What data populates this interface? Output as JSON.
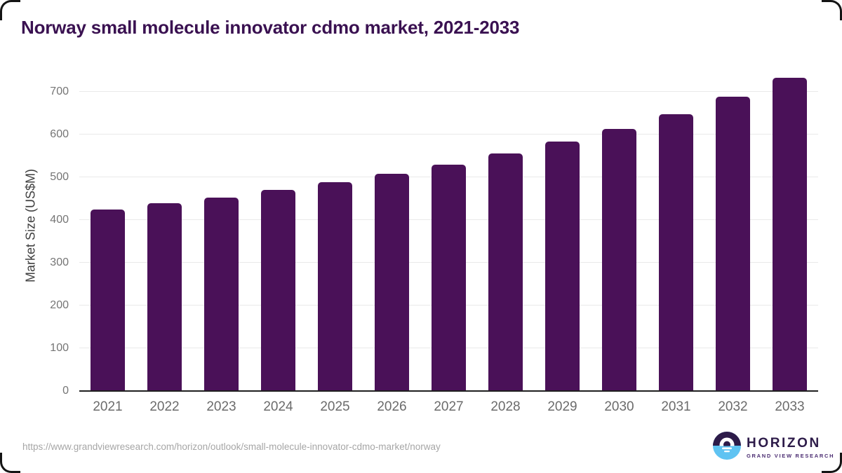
{
  "page": {
    "title": "Norway small molecule innovator cdmo market, 2021-2033"
  },
  "chart_data": {
    "type": "bar",
    "title": "Norway small molecule innovator cdmo market, 2021-2033",
    "categories": [
      "2021",
      "2022",
      "2023",
      "2024",
      "2025",
      "2026",
      "2027",
      "2028",
      "2029",
      "2030",
      "2031",
      "2032",
      "2033"
    ],
    "values": [
      425,
      439,
      453,
      470,
      488,
      508,
      530,
      555,
      583,
      614,
      648,
      688,
      733
    ],
    "xlabel": "",
    "ylabel": "Market Size (US$M)",
    "ylim": [
      0,
      735
    ],
    "yticks": [
      0,
      100,
      200,
      300,
      400,
      500,
      600,
      700
    ],
    "grid": "horizontal-light",
    "legend_position": "none",
    "bar_color": "#4a1158",
    "title_color": "#3a1151"
  },
  "footer": {
    "source_url": "https://www.grandviewresearch.com/horizon/outlook/small-molecule-innovator-cdmo-market/norway",
    "logo": {
      "name": "HORIZON",
      "subtext": "GRAND VIEW RESEARCH",
      "icon": "horizon-sunset-circle-icon",
      "navy": "#2d1b49",
      "blue": "#5fc3f2"
    }
  }
}
